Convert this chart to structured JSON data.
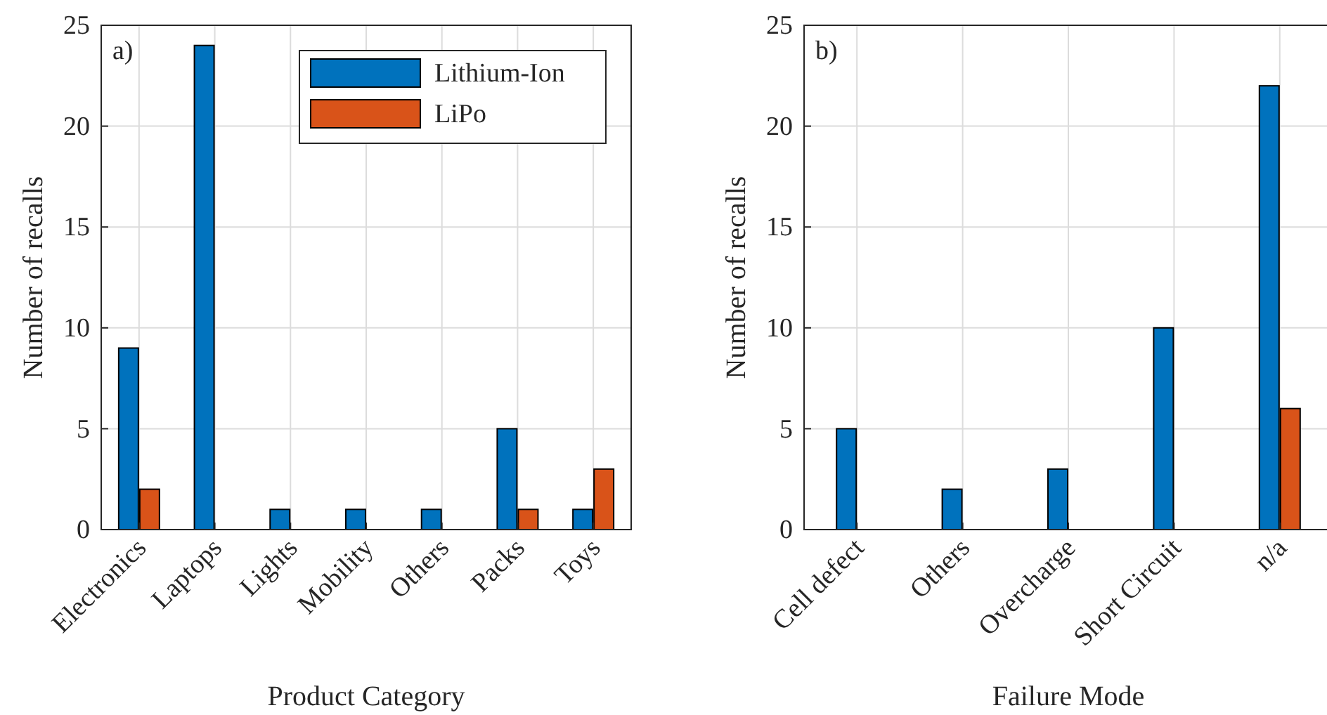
{
  "chart_data": [
    {
      "type": "bar",
      "xlabel": "Product Category",
      "ylabel": "Number of recalls",
      "annotations": [
        "a)"
      ],
      "categories": [
        "Electronics",
        "Laptops",
        "Lights",
        "Mobility",
        "Others",
        "Packs",
        "Toys"
      ],
      "series": [
        {
          "name": "Lithium-Ion",
          "color": "#0072bd",
          "values": [
            9,
            24,
            1,
            1,
            1,
            5,
            1
          ]
        },
        {
          "name": "LiPo",
          "color": "#d95319",
          "values": [
            2,
            0,
            0,
            0,
            0,
            1,
            3
          ]
        }
      ],
      "ylim": [
        0,
        25
      ],
      "yticks": [
        0,
        5,
        10,
        15,
        20,
        25
      ],
      "grid": true,
      "legend": "top right"
    },
    {
      "type": "bar",
      "xlabel": "Failure Mode",
      "ylabel": "Number of recalls",
      "annotations": [
        "b)"
      ],
      "categories": [
        "Cell defect",
        "Others",
        "Overcharge",
        "Short Circuit",
        "n/a"
      ],
      "series": [
        {
          "color": "#0072bd",
          "values": [
            5,
            2,
            3,
            10,
            22
          ]
        },
        {
          "color": "#d95319",
          "values": [
            0,
            0,
            0,
            0,
            6
          ]
        }
      ],
      "ylim": [
        0,
        25
      ],
      "yticks": [
        0,
        5,
        10,
        15,
        20,
        25
      ],
      "grid": true
    }
  ]
}
